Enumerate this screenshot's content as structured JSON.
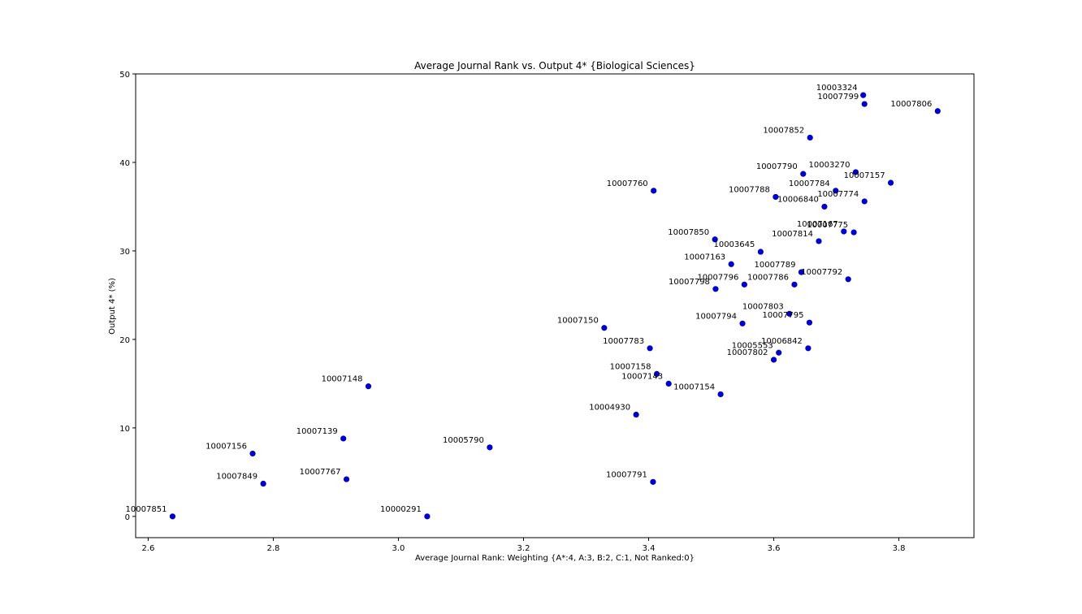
{
  "chart_data": {
    "type": "scatter",
    "title": "Average Journal Rank vs. Output 4* {Biological Sciences}",
    "xlabel": "Average Journal Rank:  Weighting {A*:4, A:3, B:2, C:1, Not Ranked:0}",
    "ylabel": "Output 4* (%)",
    "xlim": [
      2.58,
      3.92
    ],
    "ylim": [
      -2.4,
      50
    ],
    "xticks": [
      "2.6",
      "2.8",
      "3.0",
      "3.2",
      "3.4",
      "3.6",
      "3.8"
    ],
    "yticks": [
      "0",
      "10",
      "20",
      "30",
      "40",
      "50"
    ],
    "grid": false,
    "marker_color": "#0000cc",
    "points": [
      {
        "label": "10003324",
        "x": 3.743,
        "y": 47.6
      },
      {
        "label": "10007799",
        "x": 3.745,
        "y": 46.6
      },
      {
        "label": "10007806",
        "x": 3.862,
        "y": 45.8
      },
      {
        "label": "10007852",
        "x": 3.658,
        "y": 42.8
      },
      {
        "label": "10007790",
        "x": 3.647,
        "y": 38.7
      },
      {
        "label": "10003270",
        "x": 3.731,
        "y": 38.9
      },
      {
        "label": "10007157",
        "x": 3.787,
        "y": 37.7
      },
      {
        "label": "10007760",
        "x": 3.408,
        "y": 36.8
      },
      {
        "label": "10007784",
        "x": 3.699,
        "y": 36.8
      },
      {
        "label": "10007788",
        "x": 3.603,
        "y": 36.1
      },
      {
        "label": "10007774",
        "x": 3.745,
        "y": 35.6
      },
      {
        "label": "10006840",
        "x": 3.681,
        "y": 35.0
      },
      {
        "label": "10007167",
        "x": 3.712,
        "y": 32.2
      },
      {
        "label": "10007775",
        "x": 3.728,
        "y": 32.1
      },
      {
        "label": "10007814",
        "x": 3.672,
        "y": 31.1
      },
      {
        "label": "10007850",
        "x": 3.506,
        "y": 31.3
      },
      {
        "label": "10003645",
        "x": 3.579,
        "y": 29.9
      },
      {
        "label": "10007163",
        "x": 3.532,
        "y": 28.5
      },
      {
        "label": "10007789",
        "x": 3.644,
        "y": 27.6
      },
      {
        "label": "10007792",
        "x": 3.719,
        "y": 26.8
      },
      {
        "label": "10007796",
        "x": 3.553,
        "y": 26.2
      },
      {
        "label": "10007786",
        "x": 3.633,
        "y": 26.2
      },
      {
        "label": "10007798",
        "x": 3.507,
        "y": 25.7
      },
      {
        "label": "10007803",
        "x": 3.625,
        "y": 22.9
      },
      {
        "label": "10007794",
        "x": 3.55,
        "y": 21.8
      },
      {
        "label": "10007795",
        "x": 3.657,
        "y": 21.9
      },
      {
        "label": "10007150",
        "x": 3.329,
        "y": 21.3
      },
      {
        "label": "10007783",
        "x": 3.402,
        "y": 19.0
      },
      {
        "label": "10006842",
        "x": 3.655,
        "y": 19.0
      },
      {
        "label": "10005553",
        "x": 3.608,
        "y": 18.5
      },
      {
        "label": "10007802",
        "x": 3.6,
        "y": 17.7
      },
      {
        "label": "10007158",
        "x": 3.413,
        "y": 16.1
      },
      {
        "label": "10007143",
        "x": 3.432,
        "y": 15.0
      },
      {
        "label": "10007148",
        "x": 2.952,
        "y": 14.7
      },
      {
        "label": "10007154",
        "x": 3.515,
        "y": 13.8
      },
      {
        "label": "10004930",
        "x": 3.38,
        "y": 11.5
      },
      {
        "label": "10007139",
        "x": 2.912,
        "y": 8.8
      },
      {
        "label": "10005790",
        "x": 3.146,
        "y": 7.8
      },
      {
        "label": "10007156",
        "x": 2.767,
        "y": 7.1
      },
      {
        "label": "10007767",
        "x": 2.917,
        "y": 4.2
      },
      {
        "label": "10007791",
        "x": 3.407,
        "y": 3.9
      },
      {
        "label": "10007849",
        "x": 2.784,
        "y": 3.7
      },
      {
        "label": "10007851",
        "x": 2.639,
        "y": 0.0
      },
      {
        "label": "10000291",
        "x": 3.046,
        "y": 0.0
      }
    ]
  }
}
